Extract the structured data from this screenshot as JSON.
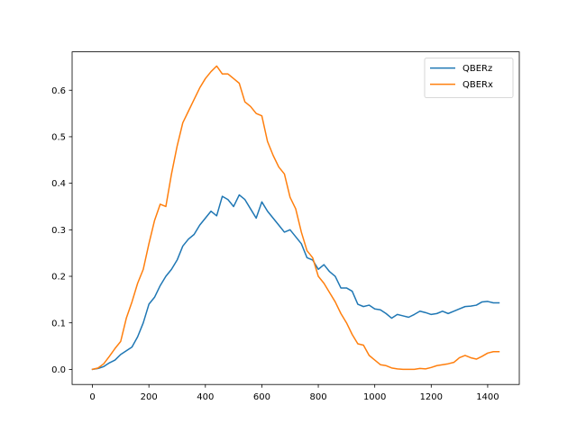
{
  "chart_data": {
    "type": "line",
    "title": "",
    "xlabel": "",
    "ylabel": "",
    "xlim": [
      -72,
      1512
    ],
    "ylim": [
      -0.0325,
      0.6825
    ],
    "xticks": [
      0,
      200,
      400,
      600,
      800,
      1000,
      1200,
      1400
    ],
    "yticks": [
      0.0,
      0.1,
      0.2,
      0.3,
      0.4,
      0.5,
      0.6
    ],
    "xtick_labels": [
      "0",
      "200",
      "400",
      "600",
      "800",
      "1000",
      "1200",
      "1400"
    ],
    "ytick_labels": [
      "0.0",
      "0.1",
      "0.2",
      "0.3",
      "0.4",
      "0.5",
      "0.6"
    ],
    "grid": false,
    "legend_position": "top-right",
    "series": [
      {
        "name": "QBERz",
        "color": "#1f77b4",
        "x": [
          0,
          20,
          40,
          60,
          80,
          100,
          120,
          140,
          160,
          180,
          200,
          220,
          240,
          260,
          280,
          300,
          320,
          340,
          360,
          380,
          400,
          420,
          440,
          460,
          480,
          500,
          520,
          540,
          560,
          580,
          600,
          620,
          640,
          660,
          680,
          700,
          720,
          740,
          760,
          780,
          800,
          820,
          840,
          860,
          880,
          900,
          920,
          940,
          960,
          980,
          1000,
          1020,
          1040,
          1060,
          1080,
          1100,
          1120,
          1140,
          1160,
          1180,
          1200,
          1220,
          1240,
          1260,
          1280,
          1300,
          1320,
          1340,
          1360,
          1380,
          1400,
          1420,
          1440
        ],
        "y": [
          0.0,
          0.002,
          0.006,
          0.014,
          0.02,
          0.032,
          0.04,
          0.048,
          0.07,
          0.1,
          0.14,
          0.155,
          0.18,
          0.2,
          0.215,
          0.235,
          0.265,
          0.28,
          0.29,
          0.31,
          0.325,
          0.34,
          0.33,
          0.372,
          0.365,
          0.35,
          0.375,
          0.365,
          0.345,
          0.325,
          0.36,
          0.34,
          0.325,
          0.31,
          0.295,
          0.3,
          0.285,
          0.27,
          0.24,
          0.235,
          0.215,
          0.225,
          0.21,
          0.2,
          0.175,
          0.175,
          0.168,
          0.14,
          0.135,
          0.138,
          0.13,
          0.128,
          0.12,
          0.11,
          0.118,
          0.115,
          0.112,
          0.118,
          0.125,
          0.122,
          0.118,
          0.12,
          0.125,
          0.12,
          0.125,
          0.13,
          0.135,
          0.136,
          0.138,
          0.145,
          0.146,
          0.143,
          0.143
        ]
      },
      {
        "name": "QBERx",
        "color": "#ff7f0e",
        "x": [
          0,
          20,
          40,
          60,
          80,
          100,
          120,
          140,
          160,
          180,
          200,
          220,
          240,
          260,
          280,
          300,
          320,
          340,
          360,
          380,
          400,
          420,
          440,
          460,
          480,
          500,
          520,
          540,
          560,
          580,
          600,
          620,
          640,
          660,
          680,
          700,
          720,
          740,
          760,
          780,
          800,
          820,
          840,
          860,
          880,
          900,
          920,
          940,
          960,
          980,
          1000,
          1020,
          1040,
          1060,
          1080,
          1100,
          1120,
          1140,
          1160,
          1180,
          1200,
          1220,
          1240,
          1260,
          1280,
          1300,
          1320,
          1340,
          1360,
          1380,
          1400,
          1420,
          1440
        ],
        "y": [
          0.0,
          0.003,
          0.012,
          0.028,
          0.045,
          0.06,
          0.11,
          0.145,
          0.185,
          0.215,
          0.27,
          0.32,
          0.355,
          0.35,
          0.42,
          0.48,
          0.53,
          0.555,
          0.58,
          0.605,
          0.625,
          0.64,
          0.652,
          0.635,
          0.635,
          0.625,
          0.615,
          0.575,
          0.565,
          0.55,
          0.545,
          0.49,
          0.46,
          0.435,
          0.42,
          0.37,
          0.345,
          0.295,
          0.255,
          0.24,
          0.2,
          0.185,
          0.165,
          0.145,
          0.12,
          0.1,
          0.075,
          0.055,
          0.052,
          0.03,
          0.02,
          0.01,
          0.008,
          0.003,
          0.001,
          0.0,
          0.0,
          0.0,
          0.002,
          0.001,
          0.004,
          0.008,
          0.01,
          0.012,
          0.015,
          0.025,
          0.03,
          0.025,
          0.022,
          0.028,
          0.035,
          0.038,
          0.038
        ]
      }
    ]
  }
}
